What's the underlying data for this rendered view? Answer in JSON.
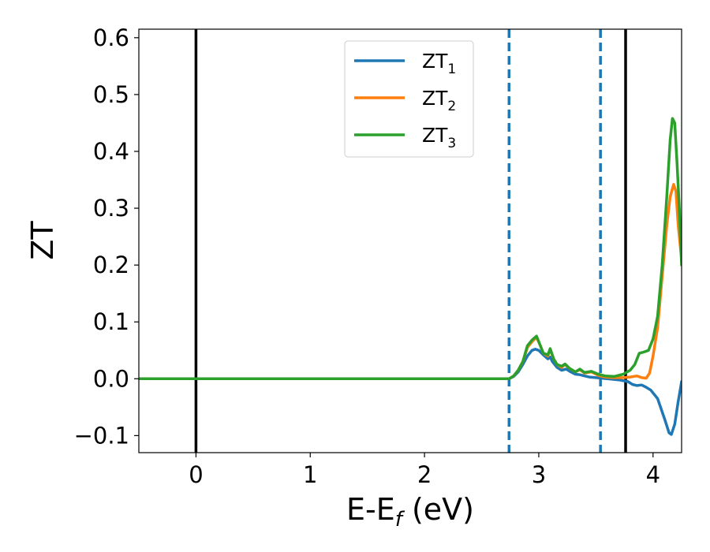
{
  "chart_data": {
    "type": "line",
    "xlabel": "E-E",
    "xlabel_sub": "f",
    "xlabel_unit": " (eV)",
    "ylabel": "ZT",
    "xlim": [
      -0.5,
      4.25
    ],
    "ylim": [
      -0.13,
      0.615
    ],
    "x_ticks": [
      0,
      1,
      2,
      3,
      4
    ],
    "x_tick_labels": [
      "0",
      "1",
      "2",
      "3",
      "4"
    ],
    "y_ticks": [
      -0.1,
      0.0,
      0.1,
      0.2,
      0.3,
      0.4,
      0.5,
      0.6
    ],
    "y_tick_labels": [
      "−0.1",
      "0.0",
      "0.1",
      "0.2",
      "0.3",
      "0.4",
      "0.5",
      "0.6"
    ],
    "grid": false,
    "legend_position": "top-center",
    "vertical_lines": [
      {
        "x": 0.0,
        "style": "solid",
        "color": "#000000"
      },
      {
        "x": 2.74,
        "style": "dashed",
        "color": "#1f77b4"
      },
      {
        "x": 3.54,
        "style": "dashed",
        "color": "#1f77b4"
      },
      {
        "x": 3.76,
        "style": "solid",
        "color": "#000000"
      }
    ],
    "series": [
      {
        "name": "ZT",
        "sub": "1",
        "color": "#1f77b4",
        "points": [
          [
            -0.5,
            0
          ],
          [
            2.74,
            0
          ],
          [
            2.78,
            0.004
          ],
          [
            2.82,
            0.012
          ],
          [
            2.86,
            0.025
          ],
          [
            2.9,
            0.04
          ],
          [
            2.94,
            0.05
          ],
          [
            2.97,
            0.052
          ],
          [
            3.0,
            0.05
          ],
          [
            3.04,
            0.042
          ],
          [
            3.08,
            0.035
          ],
          [
            3.1,
            0.038
          ],
          [
            3.12,
            0.03
          ],
          [
            3.16,
            0.02
          ],
          [
            3.2,
            0.015
          ],
          [
            3.24,
            0.017
          ],
          [
            3.28,
            0.012
          ],
          [
            3.32,
            0.008
          ],
          [
            3.36,
            0.007
          ],
          [
            3.4,
            0.005
          ],
          [
            3.44,
            0.003
          ],
          [
            3.5,
            0.002
          ],
          [
            3.55,
            0.001
          ],
          [
            3.6,
            0.0
          ],
          [
            3.7,
            -0.002
          ],
          [
            3.78,
            -0.005
          ],
          [
            3.82,
            -0.01
          ],
          [
            3.86,
            -0.012
          ],
          [
            3.9,
            -0.011
          ],
          [
            3.94,
            -0.015
          ],
          [
            3.98,
            -0.02
          ],
          [
            4.04,
            -0.035
          ],
          [
            4.1,
            -0.07
          ],
          [
            4.14,
            -0.095
          ],
          [
            4.16,
            -0.098
          ],
          [
            4.19,
            -0.08
          ],
          [
            4.22,
            -0.04
          ],
          [
            4.25,
            -0.005
          ]
        ]
      },
      {
        "name": "ZT",
        "sub": "2",
        "color": "#ff7f0e",
        "points": [
          [
            -0.5,
            0
          ],
          [
            2.74,
            0
          ],
          [
            2.78,
            0.005
          ],
          [
            2.82,
            0.015
          ],
          [
            2.86,
            0.03
          ],
          [
            2.9,
            0.055
          ],
          [
            2.94,
            0.065
          ],
          [
            2.98,
            0.073
          ],
          [
            3.01,
            0.06
          ],
          [
            3.04,
            0.045
          ],
          [
            3.08,
            0.04
          ],
          [
            3.1,
            0.052
          ],
          [
            3.13,
            0.035
          ],
          [
            3.16,
            0.025
          ],
          [
            3.2,
            0.02
          ],
          [
            3.23,
            0.025
          ],
          [
            3.27,
            0.018
          ],
          [
            3.32,
            0.012
          ],
          [
            3.36,
            0.016
          ],
          [
            3.4,
            0.01
          ],
          [
            3.46,
            0.012
          ],
          [
            3.52,
            0.006
          ],
          [
            3.58,
            0.003
          ],
          [
            3.66,
            0.002
          ],
          [
            3.74,
            0.002
          ],
          [
            3.8,
            0.003
          ],
          [
            3.86,
            0.005
          ],
          [
            3.9,
            0.002
          ],
          [
            3.94,
            0.001
          ],
          [
            3.97,
            0.01
          ],
          [
            4.0,
            0.04
          ],
          [
            4.04,
            0.09
          ],
          [
            4.08,
            0.18
          ],
          [
            4.12,
            0.27
          ],
          [
            4.15,
            0.32
          ],
          [
            4.18,
            0.342
          ],
          [
            4.2,
            0.33
          ],
          [
            4.22,
            0.27
          ],
          [
            4.25,
            0.21
          ]
        ]
      },
      {
        "name": "ZT",
        "sub": "3",
        "color": "#2ca02c",
        "points": [
          [
            -0.5,
            0
          ],
          [
            2.74,
            0
          ],
          [
            2.78,
            0.005
          ],
          [
            2.82,
            0.015
          ],
          [
            2.86,
            0.03
          ],
          [
            2.9,
            0.058
          ],
          [
            2.94,
            0.068
          ],
          [
            2.98,
            0.075
          ],
          [
            3.01,
            0.06
          ],
          [
            3.04,
            0.045
          ],
          [
            3.08,
            0.042
          ],
          [
            3.1,
            0.053
          ],
          [
            3.13,
            0.035
          ],
          [
            3.16,
            0.025
          ],
          [
            3.2,
            0.022
          ],
          [
            3.23,
            0.026
          ],
          [
            3.27,
            0.018
          ],
          [
            3.32,
            0.012
          ],
          [
            3.36,
            0.017
          ],
          [
            3.4,
            0.011
          ],
          [
            3.46,
            0.013
          ],
          [
            3.52,
            0.008
          ],
          [
            3.58,
            0.005
          ],
          [
            3.66,
            0.004
          ],
          [
            3.74,
            0.008
          ],
          [
            3.8,
            0.015
          ],
          [
            3.84,
            0.025
          ],
          [
            3.88,
            0.045
          ],
          [
            3.92,
            0.047
          ],
          [
            3.96,
            0.05
          ],
          [
            4.0,
            0.07
          ],
          [
            4.04,
            0.11
          ],
          [
            4.08,
            0.2
          ],
          [
            4.12,
            0.32
          ],
          [
            4.15,
            0.42
          ],
          [
            4.17,
            0.458
          ],
          [
            4.19,
            0.45
          ],
          [
            4.21,
            0.38
          ],
          [
            4.23,
            0.3
          ],
          [
            4.25,
            0.2
          ]
        ]
      }
    ]
  }
}
